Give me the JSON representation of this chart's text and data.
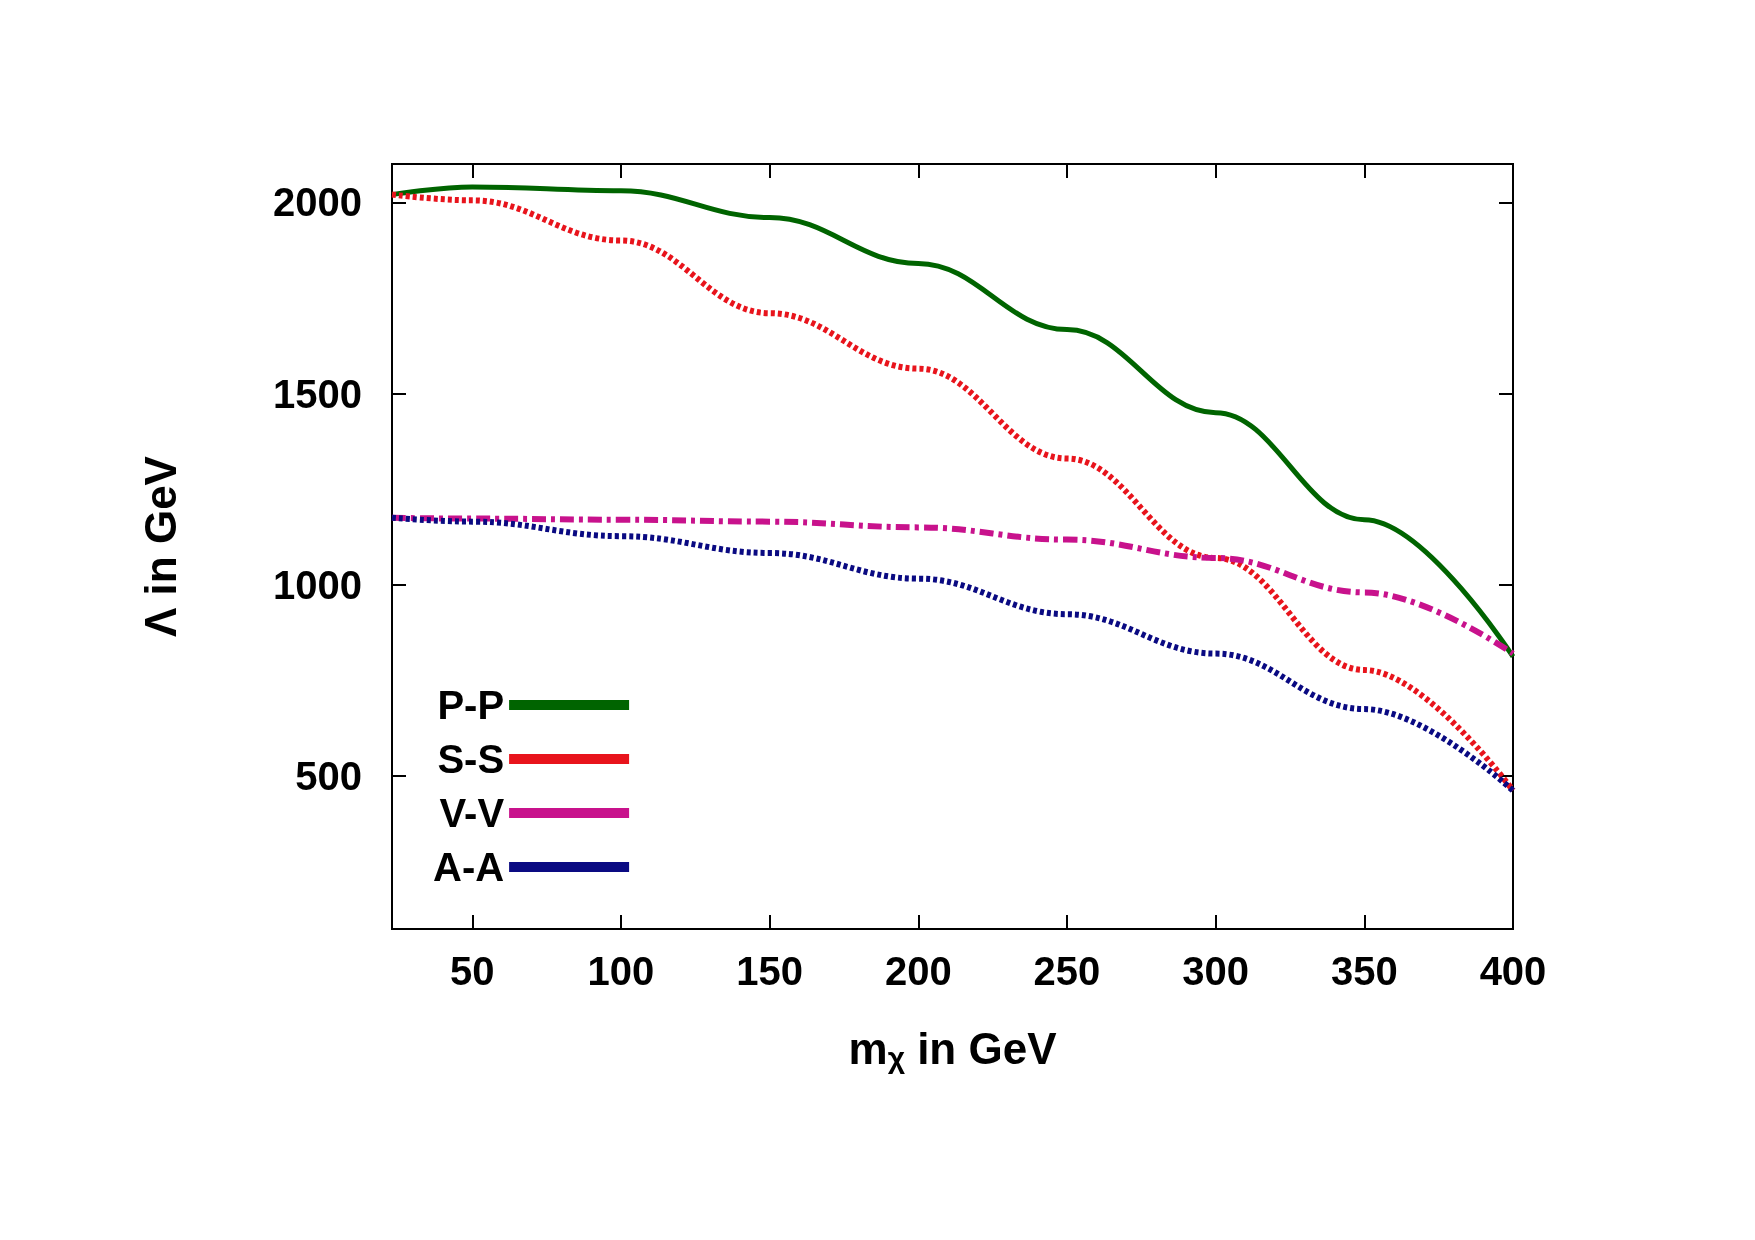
{
  "chart_data": {
    "type": "line",
    "xlabel": "m$_{χ}$ in GeV",
    "ylabel": "Λ in GeV",
    "x": [
      23,
      50,
      100,
      150,
      200,
      250,
      300,
      350,
      400
    ],
    "xlim": [
      23,
      400
    ],
    "xticks": [
      50,
      100,
      150,
      200,
      250,
      300,
      350,
      400
    ],
    "ylim": [
      100,
      2100
    ],
    "yticks": [
      500,
      1000,
      1500,
      2000
    ],
    "grid": false,
    "legend": "bottom left",
    "marker": "none",
    "series": [
      {
        "name": "P-P",
        "color": "#006400",
        "line_style": "solid",
        "values": [
          2020,
          2040,
          2030,
          1960,
          1840,
          1667,
          1450,
          1170,
          812
        ]
      },
      {
        "name": "S-S",
        "color": "#e8141c",
        "line_style": "dotted",
        "values": [
          2020,
          2005,
          1900,
          1710,
          1565,
          1330,
          1070,
          777,
          462
        ]
      },
      {
        "name": "V-V",
        "color": "#c8128c",
        "line_style": "dashdot",
        "values": [
          1175,
          1173,
          1170,
          1165,
          1150,
          1118,
          1070,
          980,
          820
        ]
      },
      {
        "name": "A-A",
        "color": "#0a0a82",
        "line_style": "dotted",
        "values": [
          1175,
          1165,
          1127,
          1083,
          1016,
          923,
          820,
          675,
          462
        ]
      }
    ]
  }
}
